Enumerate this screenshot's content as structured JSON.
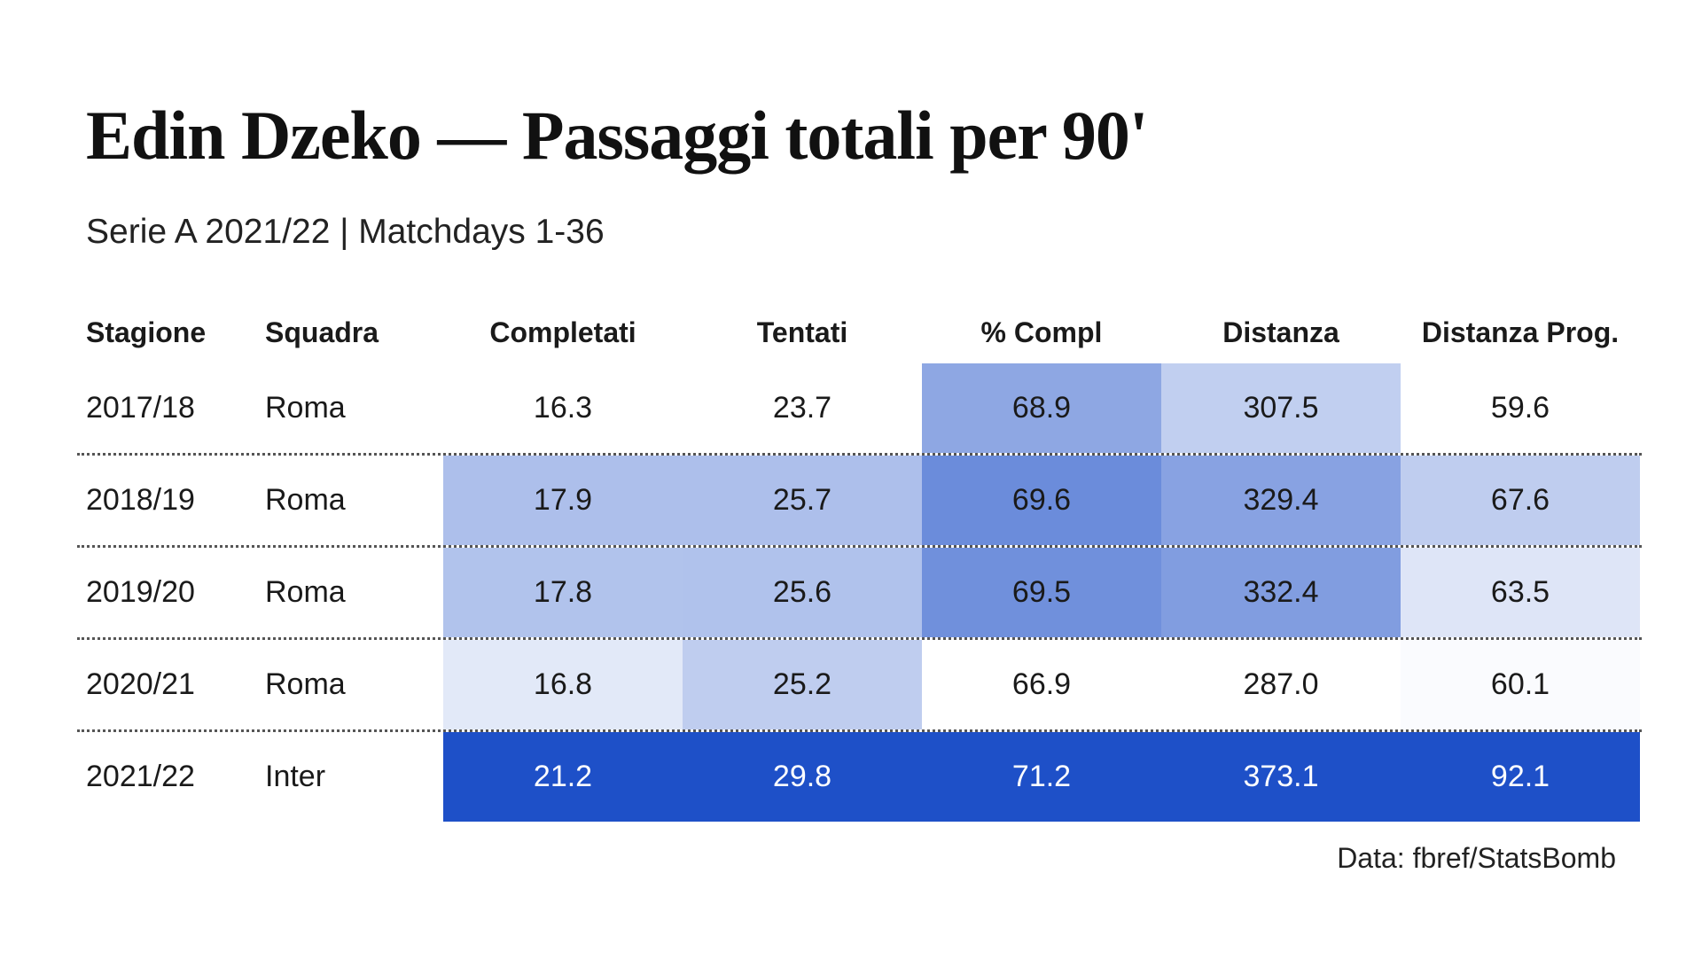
{
  "title": "Edin Dzeko — Passaggi totali per 90'",
  "subtitle": "Serie A 2021/22 | Matchdays 1-36",
  "source": "Data: fbref/StatsBomb",
  "chart_data": {
    "type": "table",
    "columns": [
      "Stagione",
      "Squadra",
      "Completati",
      "Tentati",
      "% Compl",
      "Distanza",
      "Distanza Prog."
    ],
    "rows": [
      {
        "season": "2017/18",
        "team": "Roma",
        "values": [
          "16.3",
          "23.7",
          "68.9",
          "307.5",
          "59.6"
        ]
      },
      {
        "season": "2018/19",
        "team": "Roma",
        "values": [
          "17.9",
          "25.7",
          "69.6",
          "329.4",
          "67.6"
        ]
      },
      {
        "season": "2019/20",
        "team": "Roma",
        "values": [
          "17.8",
          "25.6",
          "69.5",
          "332.4",
          "63.5"
        ]
      },
      {
        "season": "2020/21",
        "team": "Roma",
        "values": [
          "16.8",
          "25.2",
          "66.9",
          "287.0",
          "60.1"
        ]
      },
      {
        "season": "2021/22",
        "team": "Inter",
        "values": [
          "21.2",
          "29.8",
          "71.2",
          "373.1",
          "92.1"
        ]
      }
    ],
    "heatmap": "per-column shading, darker blue = higher value",
    "colors": {
      "low": "#ffffff",
      "high": "#1e50c8",
      "text_dark": "#1a1a1a",
      "text_light": "#ffffff"
    }
  }
}
